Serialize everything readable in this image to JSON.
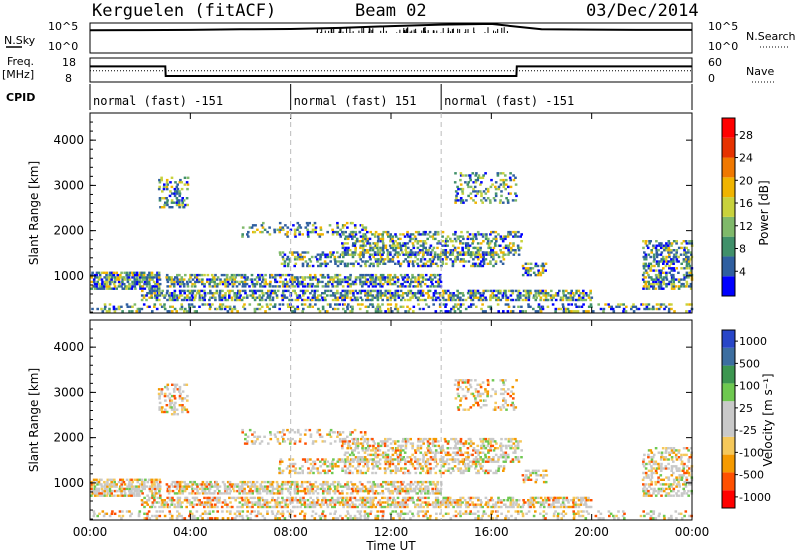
{
  "header": {
    "station": "Kerguelen (fitACF)",
    "beam": "Beam 02",
    "date": "03/Dec/2014"
  },
  "strip_labels": {
    "nsky": "N.Sky",
    "freq_line1": "Freq.",
    "freq_line2": "[MHz]",
    "cpid": "CPID",
    "nsearch": "N.Search",
    "nave": "Nave",
    "nsky_ticks": [
      "10^5",
      "10^0"
    ],
    "nsearch_ticks": [
      "10^5",
      "10^0"
    ],
    "freq_ticks": [
      "18",
      "8"
    ],
    "nave_ticks": [
      "60",
      "0"
    ]
  },
  "colors": {
    "axis": "#000000",
    "day_divider": "#bbbbbb",
    "power_scale": [
      "#0000ff",
      "#2f5fa0",
      "#40906a",
      "#7fb96a",
      "#c8d23c",
      "#f0b400",
      "#f07800",
      "#e63200",
      "#ff0000"
    ],
    "velocity_scale": [
      "#ff0000",
      "#ff5000",
      "#f59a00",
      "#f5c85a",
      "#c9c9c9",
      "#c9c9c9",
      "#6ec850",
      "#3c9650",
      "#3c6ea0",
      "#2846c8"
    ]
  },
  "chart_data": [
    {
      "type": "line",
      "panel": "N.Sky / N.Search",
      "xlabel": "",
      "ylabel": "N.Sky",
      "x": [
        "00:00",
        "02:00",
        "04:00",
        "06:00",
        "08:00",
        "10:00",
        "12:00",
        "14:00",
        "16:00",
        "18:00",
        "20:00",
        "22:00",
        "24:00"
      ],
      "series": [
        {
          "name": "N.Sky",
          "values": [
            6000,
            6500,
            7000,
            9000,
            10000,
            15000,
            30000,
            55000,
            70000,
            9000,
            8000,
            7000,
            7000
          ]
        }
      ],
      "ylim": [
        1,
        100000
      ],
      "log_scale": true
    },
    {
      "type": "line",
      "panel": "Freq / Nave",
      "xlabel": "",
      "ylabel": "Freq. [MHz]",
      "x": [
        "00:00",
        "03:00",
        "03:01",
        "17:00",
        "17:01",
        "24:00"
      ],
      "series": [
        {
          "name": "Freq.",
          "values": [
            14.5,
            14.5,
            10.5,
            10.5,
            14.5,
            14.5
          ]
        },
        {
          "name": "Nave",
          "values": [
            28,
            28,
            28,
            28,
            28,
            28
          ]
        }
      ],
      "ylim": [
        8,
        18
      ]
    },
    {
      "type": "table",
      "panel": "CPID",
      "segments": [
        {
          "start": "00:00",
          "end": "08:00",
          "label": "normal (fast) -151"
        },
        {
          "start": "08:00",
          "end": "14:00",
          "label": "normal (fast) 151"
        },
        {
          "start": "14:00",
          "end": "24:00",
          "label": "normal (fast) -151"
        }
      ]
    },
    {
      "type": "heatmap",
      "panel": "Power",
      "ylabel": "Slant Range [km]",
      "xlabel": "",
      "x_ticks": [
        "00:00",
        "04:00",
        "08:00",
        "12:00",
        "16:00",
        "20:00",
        "00:00"
      ],
      "y_ticks": [
        "1000",
        "2000",
        "3000",
        "4000"
      ],
      "ylim": [
        180,
        4600
      ],
      "colorbar": {
        "label": "Power [dB]",
        "range": [
          0,
          30
        ],
        "ticks": [
          "4",
          "8",
          "12",
          "16",
          "20",
          "24",
          "28"
        ]
      }
    },
    {
      "type": "heatmap",
      "panel": "Velocity",
      "ylabel": "Slant Range [km]",
      "xlabel": "Time UT",
      "x_ticks": [
        "00:00",
        "04:00",
        "08:00",
        "12:00",
        "16:00",
        "20:00",
        "00:00"
      ],
      "y_ticks": [
        "1000",
        "2000",
        "3000",
        "4000"
      ],
      "ylim": [
        180,
        4600
      ],
      "colorbar": {
        "label": "Velocity [m s⁻¹]",
        "range": [
          -1000,
          1000
        ],
        "ticks": [
          "1000",
          "500",
          "100",
          "25",
          "-25",
          "-100",
          "-500",
          "-1000"
        ]
      }
    }
  ]
}
